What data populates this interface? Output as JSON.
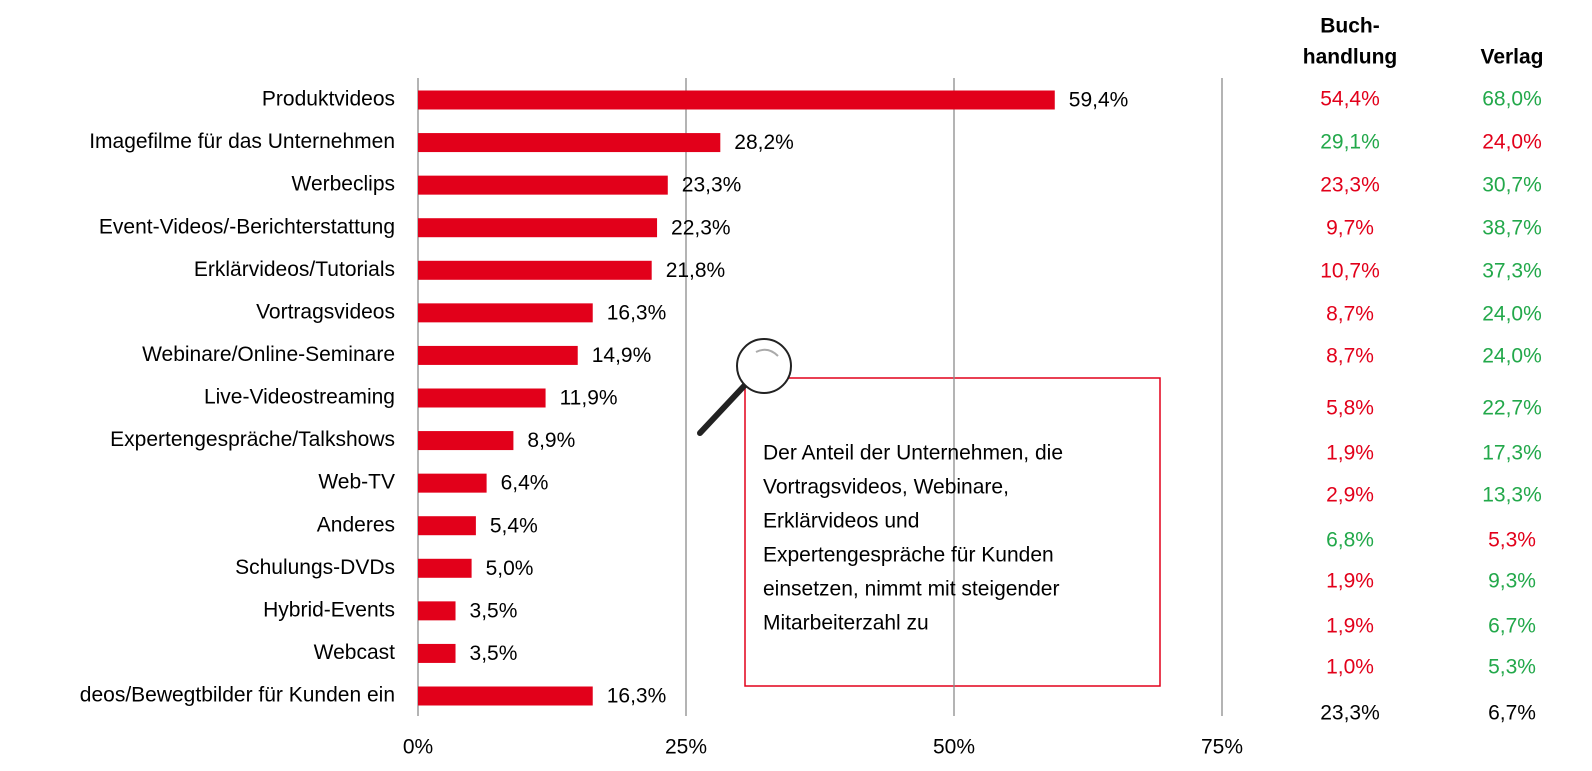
{
  "chart_data": {
    "type": "bar",
    "orientation": "horizontal",
    "categories": [
      "Produktvideos",
      "Imagefilme für das Unternehmen",
      "Werbeclips",
      "Event-Videos/-Berichterstattung",
      "Erklärvideos/Tutorials",
      "Vortragsvideos",
      "Webinare/Online-Seminare",
      "Live-Videostreaming",
      "Expertengespräche/Talkshows",
      "Web-TV",
      "Anderes",
      "Schulungs-DVDs",
      "Hybrid-Events ",
      "Webcast",
      "deos/Bewegtbilder für Kunden ein"
    ],
    "values": [
      59.4,
      28.2,
      23.3,
      22.3,
      21.8,
      16.3,
      14.9,
      11.9,
      8.9,
      6.4,
      5.4,
      5.0,
      3.5,
      3.5,
      16.3
    ],
    "value_labels": [
      "59,4%",
      "28,2%",
      "23,3%",
      "22,3%",
      "21,8%",
      "16,3%",
      "14,9%",
      "11,9%",
      "8,9%",
      "6,4%",
      "5,4%",
      "5,0%",
      "3,5%",
      "3,5%",
      "16,3%"
    ],
    "color": "#e2001a",
    "xlim": [
      0,
      75
    ],
    "xticks": [
      {
        "value": 0,
        "label": "0%"
      },
      {
        "value": 25,
        "label": "25%"
      },
      {
        "value": 50,
        "label": "50%"
      },
      {
        "value": 75,
        "label": "75%"
      }
    ],
    "grid": true,
    "annotation": [
      "Der Anteil der Unternehmen, die",
      "Vortragsvideos, Webinare,",
      "Erklärvideos und",
      "Expertengespräche für Kunden",
      "einsetzen, nimmt mit steigender",
      "Mitarbeiterzahl zu"
    ]
  },
  "side_table": {
    "columns": [
      {
        "header": [
          "Buch-",
          "handlung"
        ],
        "values": [
          54.4,
          29.1,
          23.3,
          9.7,
          10.7,
          8.7,
          8.7,
          5.8,
          1.9,
          2.9,
          6.8,
          1.9,
          1.9,
          1.0,
          23.3
        ],
        "value_labels": [
          "54,4%",
          "29,1%",
          "23,3%",
          "9,7%",
          "10,7%",
          "8,7%",
          "8,7%",
          "5,8%",
          "1,9%",
          "2,9%",
          "6,8%",
          "1,9%",
          "1,9%",
          "1,0%",
          "23,3%"
        ],
        "colors": [
          "#e2001a",
          "#22a84a",
          "#e2001a",
          "#e2001a",
          "#e2001a",
          "#e2001a",
          "#e2001a",
          "#e2001a",
          "#e2001a",
          "#e2001a",
          "#22a84a",
          "#e2001a",
          "#e2001a",
          "#e2001a",
          "#000000"
        ]
      },
      {
        "header": [
          "Verlag"
        ],
        "values": [
          68.0,
          24.0,
          30.7,
          38.7,
          37.3,
          24.0,
          24.0,
          22.7,
          17.3,
          13.3,
          5.3,
          9.3,
          6.7,
          5.3,
          6.7
        ],
        "value_labels": [
          "68,0%",
          "24,0%",
          "30,7%",
          "38,7%",
          "37,3%",
          "24,0%",
          "24,0%",
          "22,7%",
          "17,3%",
          "13,3%",
          "5,3%",
          "9,3%",
          "6,7%",
          "5,3%",
          "6,7%"
        ],
        "colors": [
          "#22a84a",
          "#e2001a",
          "#22a84a",
          "#22a84a",
          "#22a84a",
          "#22a84a",
          "#22a84a",
          "#22a84a",
          "#22a84a",
          "#22a84a",
          "#e2001a",
          "#22a84a",
          "#22a84a",
          "#22a84a",
          "#000000"
        ]
      }
    ]
  }
}
